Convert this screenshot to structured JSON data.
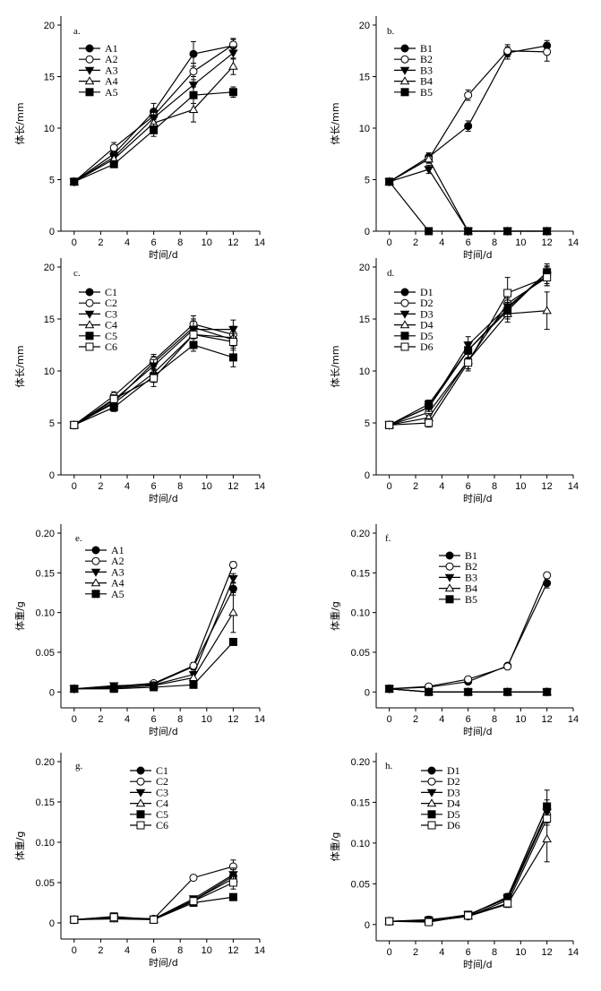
{
  "figure": {
    "x_label": "时间/d",
    "length_label": "体长/mm",
    "weight_label": "体重/g",
    "x_ticks": [
      "0",
      "2",
      "4",
      "6",
      "8",
      "10",
      "12",
      "14"
    ],
    "length_ticks": [
      "0",
      "5",
      "10",
      "15",
      "20"
    ],
    "weight_ticks": [
      "0",
      "0.05",
      "0.10",
      "0.15",
      "0.20"
    ]
  },
  "chart_data": [
    {
      "id": "a",
      "type": "line",
      "title": "a.",
      "xlabel": "时间/d",
      "ylabel": "体长/mm",
      "xlim": [
        -1,
        14
      ],
      "ylim": [
        0,
        20
      ],
      "x": [
        0,
        3,
        6,
        9,
        12
      ],
      "series": [
        {
          "name": "A1",
          "marker": "circle-filled",
          "values": [
            4.8,
            7.5,
            11.6,
            17.2,
            18.0
          ],
          "err": [
            0.2,
            0.4,
            0.8,
            1.2,
            0.6
          ]
        },
        {
          "name": "A2",
          "marker": "circle-open",
          "values": [
            4.8,
            8.1,
            11.2,
            15.5,
            18.1
          ],
          "err": [
            0.2,
            0.5,
            0.6,
            0.8,
            0.6
          ]
        },
        {
          "name": "A3",
          "marker": "triangle-down-filled",
          "values": [
            4.8,
            7.2,
            11.0,
            14.2,
            17.3
          ],
          "err": [
            0.2,
            0.4,
            0.6,
            0.8,
            0.6
          ]
        },
        {
          "name": "A4",
          "marker": "triangle-up-open",
          "values": [
            4.8,
            7.0,
            10.5,
            11.8,
            16.0
          ],
          "err": [
            0.2,
            0.4,
            0.8,
            1.2,
            0.8
          ]
        },
        {
          "name": "A5",
          "marker": "square-filled",
          "values": [
            4.8,
            6.5,
            9.8,
            13.2,
            13.5
          ],
          "err": [
            0.2,
            0.3,
            0.6,
            0.8,
            0.5
          ]
        }
      ]
    },
    {
      "id": "b",
      "type": "line",
      "title": "b.",
      "xlabel": "时间/d",
      "ylabel": "体长/mm",
      "xlim": [
        -1,
        14
      ],
      "ylim": [
        0,
        20
      ],
      "x": [
        0,
        3,
        6,
        9,
        12
      ],
      "series": [
        {
          "name": "B1",
          "marker": "circle-filled",
          "values": [
            4.8,
            7.2,
            10.2,
            17.3,
            18.0
          ],
          "err": [
            0.2,
            0.4,
            0.5,
            0.6,
            0.5
          ]
        },
        {
          "name": "B2",
          "marker": "circle-open",
          "values": [
            4.8,
            7.0,
            13.2,
            17.5,
            17.4
          ],
          "err": [
            0.2,
            0.4,
            0.5,
            0.6,
            0.9
          ]
        },
        {
          "name": "B3",
          "marker": "triangle-down-filled",
          "values": [
            4.8,
            6.0,
            0.0,
            0.0,
            0.0
          ],
          "err": [
            0.2,
            0.4,
            0,
            0,
            0
          ]
        },
        {
          "name": "B4",
          "marker": "triangle-up-open",
          "values": [
            4.8,
            7.0,
            0.0,
            0.0,
            0.0
          ],
          "err": [
            0.2,
            0.4,
            0,
            0,
            0
          ]
        },
        {
          "name": "B5",
          "marker": "square-filled",
          "values": [
            4.8,
            0.0,
            0.0,
            0.0,
            0.0
          ],
          "err": [
            0.2,
            0,
            0,
            0,
            0
          ]
        }
      ]
    },
    {
      "id": "c",
      "type": "line",
      "title": "c.",
      "xlabel": "时间/d",
      "ylabel": "体长/mm",
      "xlim": [
        -1,
        14
      ],
      "ylim": [
        0,
        20
      ],
      "x": [
        0,
        3,
        6,
        9,
        12
      ],
      "series": [
        {
          "name": "C1",
          "marker": "circle-filled",
          "values": [
            4.8,
            7.0,
            10.8,
            14.2,
            13.0
          ],
          "err": [
            0.2,
            0.4,
            0.6,
            0.8,
            0.8
          ]
        },
        {
          "name": "C2",
          "marker": "circle-open",
          "values": [
            4.8,
            7.6,
            11.0,
            14.5,
            13.5
          ],
          "err": [
            0.2,
            0.4,
            0.6,
            0.8,
            0.8
          ]
        },
        {
          "name": "C3",
          "marker": "triangle-down-filled",
          "values": [
            4.8,
            7.2,
            10.5,
            14.0,
            14.0
          ],
          "err": [
            0.2,
            0.4,
            0.6,
            0.8,
            0.9
          ]
        },
        {
          "name": "C4",
          "marker": "triangle-up-open",
          "values": [
            4.8,
            6.9,
            9.8,
            13.5,
            13.2
          ],
          "err": [
            0.2,
            0.4,
            0.6,
            0.8,
            0.8
          ]
        },
        {
          "name": "C5",
          "marker": "square-filled",
          "values": [
            4.8,
            6.5,
            9.5,
            12.5,
            11.3
          ],
          "err": [
            0.2,
            0.4,
            0.6,
            0.6,
            0.9
          ]
        },
        {
          "name": "C6",
          "marker": "square-open",
          "values": [
            4.8,
            7.3,
            9.3,
            13.5,
            12.8
          ],
          "err": [
            0.2,
            0.4,
            0.8,
            0.8,
            0.8
          ]
        }
      ]
    },
    {
      "id": "d",
      "type": "line",
      "title": "d.",
      "xlabel": "时间/d",
      "ylabel": "体长/mm",
      "xlim": [
        -1,
        14
      ],
      "ylim": [
        0,
        20
      ],
      "x": [
        0,
        3,
        6,
        9,
        12
      ],
      "series": [
        {
          "name": "D1",
          "marker": "circle-filled",
          "values": [
            4.8,
            6.5,
            12.0,
            16.0,
            19.5
          ],
          "err": [
            0.2,
            0.4,
            0.8,
            0.8,
            0.6
          ]
        },
        {
          "name": "D2",
          "marker": "circle-open",
          "values": [
            4.8,
            6.0,
            11.0,
            16.5,
            19.0
          ],
          "err": [
            0.2,
            0.4,
            0.8,
            0.8,
            0.8
          ]
        },
        {
          "name": "D3",
          "marker": "triangle-down-filled",
          "values": [
            4.8,
            6.5,
            12.5,
            16.2,
            19.2
          ],
          "err": [
            0.2,
            0.4,
            0.8,
            0.8,
            0.8
          ]
        },
        {
          "name": "D4",
          "marker": "triangle-up-open",
          "values": [
            4.8,
            5.5,
            11.0,
            15.5,
            15.8
          ],
          "err": [
            0.2,
            0.4,
            0.8,
            0.8,
            1.8
          ]
        },
        {
          "name": "D5",
          "marker": "square-filled",
          "values": [
            4.8,
            6.8,
            12.0,
            15.8,
            19.5
          ],
          "err": [
            0.2,
            0.4,
            0.8,
            0.8,
            0.8
          ]
        },
        {
          "name": "D6",
          "marker": "square-open",
          "values": [
            4.8,
            5.0,
            10.8,
            17.5,
            19.0
          ],
          "err": [
            0.2,
            0.4,
            0.8,
            1.5,
            0.8
          ]
        }
      ]
    },
    {
      "id": "e",
      "type": "line",
      "title": "e.",
      "xlabel": "时间/d",
      "ylabel": "体重/g",
      "xlim": [
        -1,
        14
      ],
      "ylim": [
        -0.02,
        0.2
      ],
      "x": [
        0,
        3,
        6,
        9,
        12
      ],
      "series": [
        {
          "name": "A1",
          "marker": "circle-filled",
          "values": [
            0.004,
            0.006,
            0.01,
            0.032,
            0.13
          ],
          "err": [
            0.001,
            0.003,
            0.003,
            0.004,
            0.008
          ]
        },
        {
          "name": "A2",
          "marker": "circle-open",
          "values": [
            0.004,
            0.007,
            0.011,
            0.033,
            0.16
          ],
          "err": [
            0.001,
            0.003,
            0.003,
            0.004,
            0.004
          ]
        },
        {
          "name": "A3",
          "marker": "triangle-down-filled",
          "values": [
            0.004,
            0.008,
            0.009,
            0.022,
            0.143
          ],
          "err": [
            0.001,
            0.003,
            0.003,
            0.004,
            0.006
          ]
        },
        {
          "name": "A4",
          "marker": "triangle-up-open",
          "values": [
            0.004,
            0.005,
            0.008,
            0.018,
            0.1
          ],
          "err": [
            0.001,
            0.003,
            0.003,
            0.004,
            0.025
          ]
        },
        {
          "name": "A5",
          "marker": "square-filled",
          "values": [
            0.004,
            0.004,
            0.006,
            0.009,
            0.063
          ],
          "err": [
            0.001,
            0.002,
            0.002,
            0.003,
            0.003
          ]
        }
      ]
    },
    {
      "id": "f",
      "type": "line",
      "title": "f.",
      "xlabel": "时间/d",
      "ylabel": "体重/g",
      "xlim": [
        -1,
        14
      ],
      "ylim": [
        -0.02,
        0.2
      ],
      "x": [
        0,
        3,
        6,
        9,
        12
      ],
      "series": [
        {
          "name": "B1",
          "marker": "circle-filled",
          "values": [
            0.004,
            0.006,
            0.013,
            0.033,
            0.137
          ],
          "err": [
            0.001,
            0.002,
            0.002,
            0.003,
            0.006
          ]
        },
        {
          "name": "B2",
          "marker": "circle-open",
          "values": [
            0.004,
            0.007,
            0.016,
            0.032,
            0.147
          ],
          "err": [
            0.001,
            0.002,
            0.002,
            0.003,
            0.003
          ]
        },
        {
          "name": "B3",
          "marker": "triangle-down-filled",
          "values": [
            0.004,
            0.0,
            0.0,
            0.0,
            0.0
          ],
          "err": [
            0.001,
            0,
            0,
            0,
            0
          ]
        },
        {
          "name": "B4",
          "marker": "triangle-up-open",
          "values": [
            0.004,
            0.0,
            0.0,
            0.0,
            0.0
          ],
          "err": [
            0.001,
            0,
            0,
            0,
            0
          ]
        },
        {
          "name": "B5",
          "marker": "square-filled",
          "values": [
            0.004,
            0.0,
            0.0,
            0.0,
            0.0
          ],
          "err": [
            0.001,
            0,
            0,
            0,
            0
          ]
        }
      ]
    },
    {
      "id": "g",
      "type": "line",
      "title": "g.",
      "xlabel": "时间/d",
      "ylabel": "体重/g",
      "xlim": [
        -1,
        14
      ],
      "ylim": [
        -0.02,
        0.2
      ],
      "x": [
        0,
        3,
        6,
        9,
        12
      ],
      "series": [
        {
          "name": "C1",
          "marker": "circle-filled",
          "values": [
            0.004,
            0.006,
            0.005,
            0.028,
            0.058
          ],
          "err": [
            0.001,
            0.002,
            0.002,
            0.003,
            0.008
          ]
        },
        {
          "name": "C2",
          "marker": "circle-open",
          "values": [
            0.004,
            0.007,
            0.005,
            0.056,
            0.07
          ],
          "err": [
            0.001,
            0.002,
            0.002,
            0.003,
            0.008
          ]
        },
        {
          "name": "C3",
          "marker": "triangle-down-filled",
          "values": [
            0.004,
            0.006,
            0.005,
            0.03,
            0.06
          ],
          "err": [
            0.001,
            0.002,
            0.002,
            0.003,
            0.008
          ]
        },
        {
          "name": "C4",
          "marker": "triangle-up-open",
          "values": [
            0.004,
            0.005,
            0.004,
            0.028,
            0.055
          ],
          "err": [
            0.001,
            0.002,
            0.002,
            0.003,
            0.008
          ]
        },
        {
          "name": "C5",
          "marker": "square-filled",
          "values": [
            0.004,
            0.008,
            0.004,
            0.025,
            0.032
          ],
          "err": [
            0.001,
            0.002,
            0.002,
            0.003,
            0.003
          ]
        },
        {
          "name": "C6",
          "marker": "square-open",
          "values": [
            0.004,
            0.007,
            0.004,
            0.027,
            0.05
          ],
          "err": [
            0.001,
            0.002,
            0.002,
            0.003,
            0.008
          ]
        }
      ]
    },
    {
      "id": "h",
      "type": "line",
      "title": "h.",
      "xlabel": "时间/d",
      "ylabel": "体重/g",
      "xlim": [
        -1,
        14
      ],
      "ylim": [
        -0.02,
        0.2
      ],
      "x": [
        0,
        3,
        6,
        9,
        12
      ],
      "series": [
        {
          "name": "D1",
          "marker": "circle-filled",
          "values": [
            0.004,
            0.006,
            0.011,
            0.034,
            0.145
          ],
          "err": [
            0.001,
            0.004,
            0.003,
            0.004,
            0.02
          ]
        },
        {
          "name": "D2",
          "marker": "circle-open",
          "values": [
            0.004,
            0.004,
            0.01,
            0.03,
            0.135
          ],
          "err": [
            0.001,
            0.003,
            0.003,
            0.004,
            0.01
          ]
        },
        {
          "name": "D3",
          "marker": "triangle-down-filled",
          "values": [
            0.004,
            0.005,
            0.012,
            0.032,
            0.138
          ],
          "err": [
            0.001,
            0.003,
            0.003,
            0.004,
            0.01
          ]
        },
        {
          "name": "D4",
          "marker": "triangle-up-open",
          "values": [
            0.004,
            0.004,
            0.01,
            0.025,
            0.105
          ],
          "err": [
            0.001,
            0.003,
            0.003,
            0.004,
            0.028
          ]
        },
        {
          "name": "D5",
          "marker": "square-filled",
          "values": [
            0.004,
            0.005,
            0.012,
            0.033,
            0.145
          ],
          "err": [
            0.001,
            0.003,
            0.003,
            0.004,
            0.008
          ]
        },
        {
          "name": "D6",
          "marker": "square-open",
          "values": [
            0.004,
            0.003,
            0.011,
            0.026,
            0.13
          ],
          "err": [
            0.001,
            0.003,
            0.003,
            0.004,
            0.008
          ]
        }
      ]
    }
  ]
}
